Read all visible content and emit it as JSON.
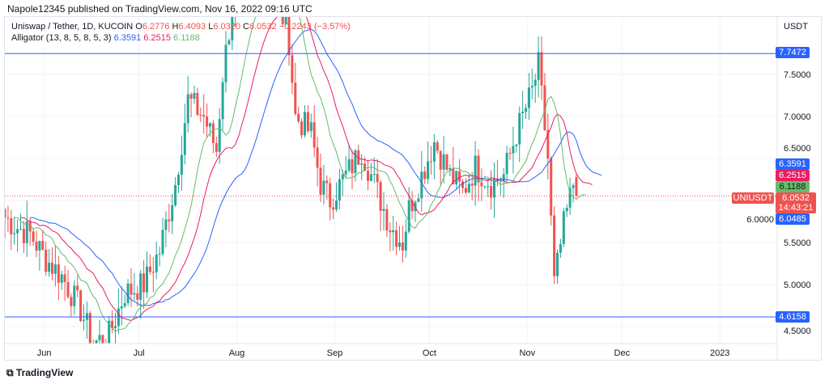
{
  "header": {
    "published": "Napole12345 published on TradingView.com, Nov 16, 2022 09:16 UTC"
  },
  "legend": {
    "symbol": "Uniswap / Tether, 1D, KUCOIN",
    "o_label": "O",
    "o": "6.2776",
    "h_label": "H",
    "h": "6.4093",
    "l_label": "L",
    "l": "6.0320",
    "c_label": "C",
    "c": "6.0532",
    "change": "−0.2243 (−3.57%)",
    "alligator": "Alligator (13, 8, 5, 8, 5, 3)",
    "jaw": "6.3591",
    "teeth": "6.2515",
    "lips": "6.1188"
  },
  "colors": {
    "up": "#26a69a",
    "down": "#ef5350",
    "jaw": "#2962ff",
    "teeth": "#e91e63",
    "lips": "#66bb6a",
    "hline": "#2962ff"
  },
  "tags": {
    "currency": "USDT",
    "resistance": "7.7472",
    "support": "4.6158",
    "jaw": "6.3591",
    "teeth": "6.2515",
    "lips": "6.1188",
    "price": "6.0532",
    "countdown": "14:43:21",
    "low": "6.0485",
    "symbol_tag": "UNIUSDT"
  },
  "footer": {
    "brand": "TradingView"
  },
  "chart_data": {
    "type": "candlestick",
    "ylim": [
      4.3,
      8.2
    ],
    "yticks": [
      "7.5000",
      "7.0000",
      "6.5000",
      "6.0000",
      "5.5000",
      "5.0000",
      "4.5000"
    ],
    "yvals": [
      7.5,
      7.0,
      6.5,
      6.0,
      5.5,
      5.0,
      4.5
    ],
    "xticks": [
      {
        "label": "Jun",
        "day": 14
      },
      {
        "label": "Jul",
        "day": 44
      },
      {
        "label": "Aug",
        "day": 75
      },
      {
        "label": "Sep",
        "day": 106
      },
      {
        "label": "Oct",
        "day": 136
      },
      {
        "label": "Nov",
        "day": 167
      },
      {
        "label": "Dec",
        "day": 197
      },
      {
        "label": "2023",
        "day": 228
      }
    ],
    "horizontal_lines": [
      7.7472,
      4.6158
    ],
    "approx_close_keypoints": [
      [
        0,
        5.8
      ],
      [
        3,
        5.7
      ],
      [
        8,
        5.6
      ],
      [
        13,
        5.3
      ],
      [
        18,
        5.1
      ],
      [
        24,
        4.7
      ],
      [
        28,
        4.3
      ],
      [
        33,
        4.4
      ],
      [
        38,
        4.9
      ],
      [
        44,
        5.0
      ],
      [
        49,
        5.4
      ],
      [
        54,
        6.2
      ],
      [
        58,
        7.2
      ],
      [
        63,
        7.0
      ],
      [
        67,
        6.6
      ],
      [
        69,
        7.5
      ],
      [
        72,
        8.3
      ],
      [
        77,
        8.6
      ],
      [
        85,
        8.6
      ],
      [
        90,
        7.9
      ],
      [
        92,
        7.0
      ],
      [
        97,
        6.8
      ],
      [
        100,
        6.2
      ],
      [
        103,
        6.0
      ],
      [
        108,
        6.3
      ],
      [
        113,
        6.6
      ],
      [
        118,
        6.1
      ],
      [
        122,
        5.7
      ],
      [
        126,
        5.5
      ],
      [
        128,
        5.9
      ],
      [
        132,
        6.3
      ],
      [
        136,
        6.7
      ],
      [
        141,
        6.3
      ],
      [
        145,
        6.1
      ],
      [
        149,
        6.4
      ],
      [
        154,
        6.2
      ],
      [
        158,
        6.3
      ],
      [
        162,
        6.8
      ],
      [
        167,
        7.3
      ],
      [
        169,
        7.6
      ],
      [
        172,
        6.5
      ],
      [
        174,
        5.0
      ],
      [
        177,
        5.7
      ],
      [
        180,
        6.2
      ],
      [
        181,
        6.05
      ]
    ]
  }
}
